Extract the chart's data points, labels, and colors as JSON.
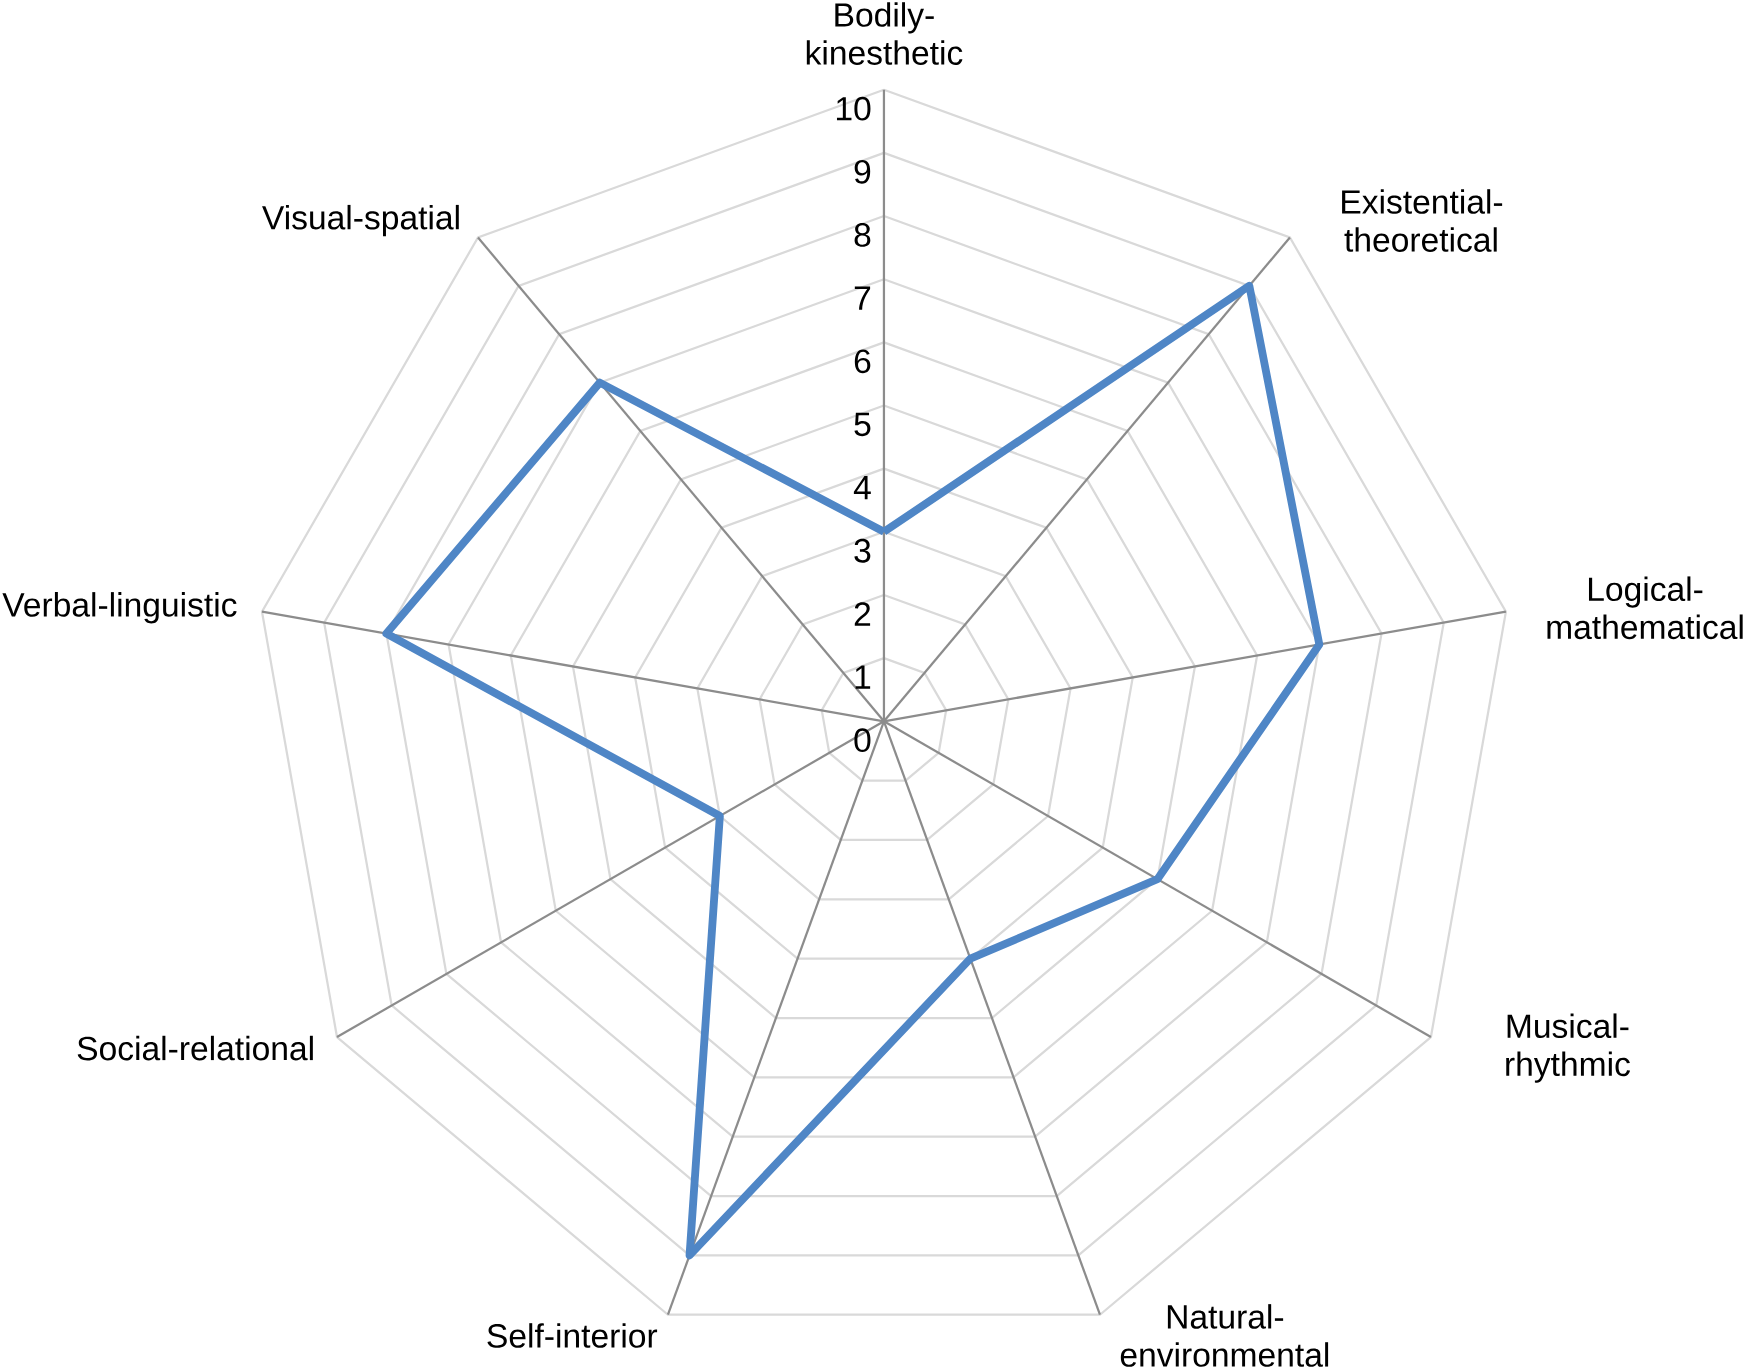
{
  "chart_data": {
    "type": "radar",
    "categories": [
      "Bodily-kinesthetic",
      "Existential-theoretical",
      "Logical-mathematical",
      "Musical-rhythmic",
      "Natural-environmental",
      "Self-interior",
      "Social-relational",
      "Verbal-linguistic",
      "Visual-spatial"
    ],
    "series": [
      {
        "color": "#4f86c6",
        "values": [
          3,
          9,
          7,
          5,
          4,
          9,
          3,
          8,
          7
        ]
      }
    ],
    "ylim": [
      0,
      10
    ],
    "yticks": [
      0,
      1,
      2,
      3,
      4,
      5,
      6,
      7,
      8,
      9,
      10
    ],
    "grid": true
  }
}
